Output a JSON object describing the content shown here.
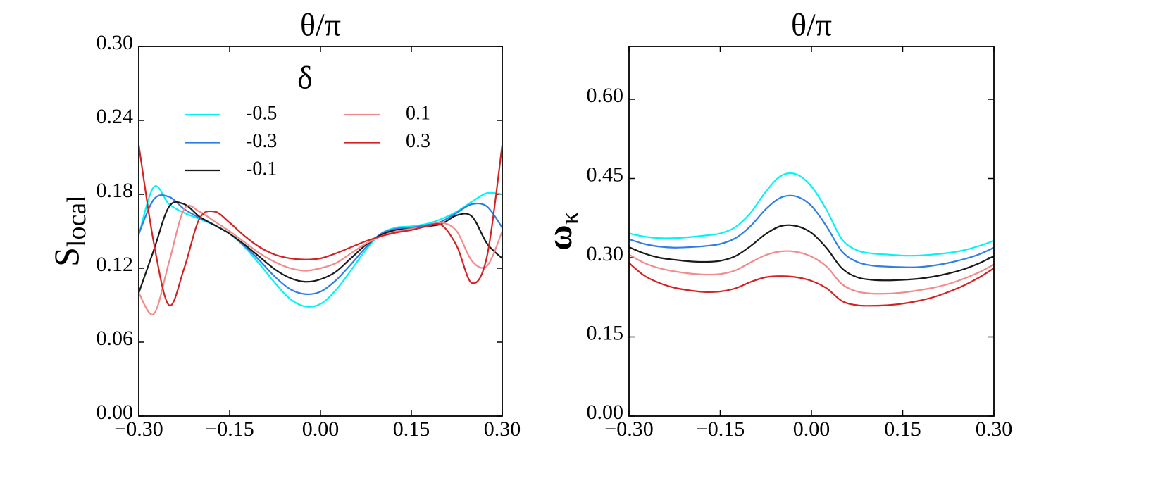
{
  "chart_data": [
    {
      "type": "line",
      "title": "θ/π",
      "ylabel": "S",
      "ylabel_sub": "local",
      "ylabel_style": "normal",
      "x": [
        -0.3,
        -0.275,
        -0.25,
        -0.225,
        -0.2,
        -0.175,
        -0.15,
        -0.125,
        -0.1,
        -0.075,
        -0.05,
        -0.025,
        0,
        0.025,
        0.05,
        0.075,
        0.1,
        0.125,
        0.15,
        0.175,
        0.2,
        0.225,
        0.25,
        0.275,
        0.3
      ],
      "xlim": [
        -0.3,
        0.3
      ],
      "xticks": [
        {
          "value": -0.3,
          "label": "−0.30"
        },
        {
          "value": -0.15,
          "label": "−0.15"
        },
        {
          "value": 0,
          "label": "0.00"
        },
        {
          "value": 0.15,
          "label": "0.15"
        },
        {
          "value": 0.3,
          "label": "0.30"
        }
      ],
      "ylim": [
        0,
        0.3
      ],
      "yticks": [
        {
          "value": 0,
          "label": "0.00"
        },
        {
          "value": 0.06,
          "label": "0.06"
        },
        {
          "value": 0.12,
          "label": "0.12"
        },
        {
          "value": 0.18,
          "label": "0.18"
        },
        {
          "value": 0.24,
          "label": "0.24"
        },
        {
          "value": 0.3,
          "label": "0.30"
        }
      ],
      "legend_title": "δ",
      "legend_loc": "upper center",
      "legend_ncol": 2,
      "series": [
        {
          "name": "-0.5",
          "color": "#00f5f5",
          "values": [
            0.147,
            0.186,
            0.172,
            0.165,
            0.16,
            0.155,
            0.148,
            0.137,
            0.123,
            0.108,
            0.095,
            0.089,
            0.091,
            0.102,
            0.118,
            0.135,
            0.148,
            0.153,
            0.154,
            0.156,
            0.16,
            0.166,
            0.174,
            0.181,
            0.18
          ]
        },
        {
          "name": "-0.3",
          "color": "#2f7ee6",
          "values": [
            0.148,
            0.176,
            0.178,
            0.168,
            0.161,
            0.155,
            0.148,
            0.138,
            0.126,
            0.113,
            0.103,
            0.099,
            0.101,
            0.11,
            0.123,
            0.137,
            0.148,
            0.152,
            0.153,
            0.155,
            0.158,
            0.165,
            0.172,
            0.17,
            0.153
          ]
        },
        {
          "name": "-0.1",
          "color": "#1a1a1a",
          "values": [
            0.1,
            0.135,
            0.17,
            0.172,
            0.162,
            0.155,
            0.148,
            0.139,
            0.129,
            0.119,
            0.112,
            0.109,
            0.111,
            0.117,
            0.128,
            0.139,
            0.147,
            0.151,
            0.152,
            0.154,
            0.156,
            0.163,
            0.162,
            0.14,
            0.128
          ]
        },
        {
          "name": "0.1",
          "color": "#f28b8b",
          "values": [
            0.1,
            0.083,
            0.125,
            0.168,
            0.166,
            0.158,
            0.15,
            0.141,
            0.132,
            0.125,
            0.12,
            0.118,
            0.12,
            0.124,
            0.132,
            0.14,
            0.146,
            0.15,
            0.152,
            0.154,
            0.157,
            0.15,
            0.126,
            0.122,
            0.15
          ]
        },
        {
          "name": "0.3",
          "color": "#d42222",
          "values": [
            0.22,
            0.14,
            0.09,
            0.12,
            0.16,
            0.166,
            0.157,
            0.146,
            0.137,
            0.131,
            0.128,
            0.127,
            0.128,
            0.132,
            0.137,
            0.142,
            0.146,
            0.149,
            0.151,
            0.154,
            0.155,
            0.138,
            0.108,
            0.13,
            0.22
          ]
        }
      ]
    },
    {
      "type": "line",
      "title": "θ/π",
      "ylabel": "ω",
      "ylabel_sub": "κ",
      "ylabel_style": "bold",
      "x": [
        -0.3,
        -0.275,
        -0.25,
        -0.225,
        -0.2,
        -0.175,
        -0.15,
        -0.125,
        -0.1,
        -0.075,
        -0.05,
        -0.025,
        0,
        0.025,
        0.05,
        0.075,
        0.1,
        0.125,
        0.15,
        0.175,
        0.2,
        0.225,
        0.25,
        0.275,
        0.3
      ],
      "xlim": [
        -0.3,
        0.3
      ],
      "xticks": [
        {
          "value": -0.3,
          "label": "−0.30"
        },
        {
          "value": -0.15,
          "label": "−0.15"
        },
        {
          "value": 0,
          "label": "0.00"
        },
        {
          "value": 0.15,
          "label": "0.15"
        },
        {
          "value": 0.3,
          "label": "0.30"
        }
      ],
      "ylim": [
        0,
        0.7
      ],
      "yticks": [
        {
          "value": 0,
          "label": "0.00"
        },
        {
          "value": 0.15,
          "label": "0.15"
        },
        {
          "value": 0.3,
          "label": "0.30"
        },
        {
          "value": 0.45,
          "label": "0.45"
        },
        {
          "value": 0.6,
          "label": "0.60"
        }
      ],
      "series": [
        {
          "color": "#00f5f5",
          "values": [
            0.346,
            0.34,
            0.337,
            0.337,
            0.339,
            0.342,
            0.346,
            0.358,
            0.385,
            0.425,
            0.455,
            0.458,
            0.435,
            0.39,
            0.335,
            0.314,
            0.308,
            0.306,
            0.304,
            0.304,
            0.306,
            0.309,
            0.314,
            0.322,
            0.332
          ]
        },
        {
          "color": "#2f7ee6",
          "values": [
            0.335,
            0.326,
            0.321,
            0.319,
            0.32,
            0.322,
            0.326,
            0.337,
            0.36,
            0.392,
            0.414,
            0.416,
            0.398,
            0.359,
            0.312,
            0.292,
            0.285,
            0.283,
            0.282,
            0.282,
            0.285,
            0.29,
            0.297,
            0.306,
            0.319
          ]
        },
        {
          "color": "#1a1a1a",
          "values": [
            0.32,
            0.308,
            0.3,
            0.296,
            0.293,
            0.292,
            0.294,
            0.303,
            0.322,
            0.345,
            0.36,
            0.36,
            0.347,
            0.318,
            0.28,
            0.263,
            0.258,
            0.257,
            0.258,
            0.26,
            0.264,
            0.27,
            0.278,
            0.289,
            0.303
          ]
        },
        {
          "color": "#f28b8b",
          "values": [
            0.306,
            0.29,
            0.28,
            0.274,
            0.27,
            0.268,
            0.269,
            0.276,
            0.291,
            0.305,
            0.312,
            0.311,
            0.302,
            0.283,
            0.25,
            0.236,
            0.232,
            0.232,
            0.234,
            0.238,
            0.243,
            0.25,
            0.26,
            0.272,
            0.287
          ]
        },
        {
          "color": "#d42222",
          "values": [
            0.29,
            0.266,
            0.252,
            0.243,
            0.238,
            0.235,
            0.236,
            0.242,
            0.254,
            0.263,
            0.265,
            0.263,
            0.256,
            0.242,
            0.218,
            0.21,
            0.209,
            0.21,
            0.213,
            0.218,
            0.225,
            0.235,
            0.247,
            0.262,
            0.28
          ]
        }
      ]
    }
  ]
}
